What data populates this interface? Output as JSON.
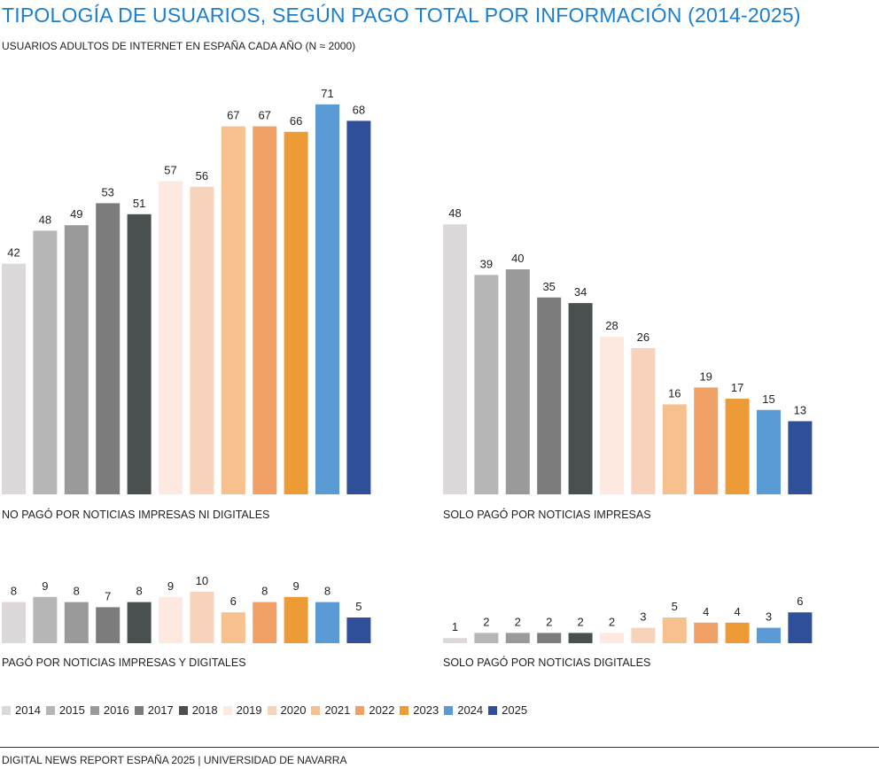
{
  "title": "TIPOLOGÍA DE USUARIOS, SEGÚN PAGO TOTAL POR INFORMACIÓN (2014-2025)",
  "subtitle": "USUARIOS ADULTOS DE INTERNET EN ESPAÑA CADA AÑO (N ≈ 2000)",
  "footer": "DIGITAL NEWS REPORT ESPAÑA 2025 | UNIVERSIDAD DE NAVARRA",
  "legend": [
    {
      "label": "2014",
      "color": "#ddd8d9"
    },
    {
      "label": "2015",
      "color": "#b6b6b6"
    },
    {
      "label": "2016",
      "color": "#9a9a9a"
    },
    {
      "label": "2017",
      "color": "#7c7c7c"
    },
    {
      "label": "2018",
      "color": "#4a4f4f"
    },
    {
      "label": "2019",
      "color": "#fde9e0"
    },
    {
      "label": "2020",
      "color": "#f8d3bb"
    },
    {
      "label": "2021",
      "color": "#f7c08f"
    },
    {
      "label": "2022",
      "color": "#f1a166"
    },
    {
      "label": "2023",
      "color": "#ec9b36"
    },
    {
      "label": "2024",
      "color": "#5b9bd5"
    },
    {
      "label": "2025",
      "color": "#2f4f98"
    }
  ],
  "chart_data": [
    {
      "type": "bar",
      "title": "NO PAGÓ POR NOTICIAS IMPRESAS NI DIGITALES",
      "categories": [
        "2014",
        "2015",
        "2016",
        "2017",
        "2018",
        "2019",
        "2020",
        "2021",
        "2022",
        "2023",
        "2024",
        "2025"
      ],
      "values": [
        42,
        48,
        49,
        53,
        51,
        57,
        56,
        67,
        67,
        66,
        71,
        68
      ]
    },
    {
      "type": "bar",
      "title": "SOLO PAGÓ POR NOTICIAS IMPRESAS",
      "categories": [
        "2014",
        "2015",
        "2016",
        "2017",
        "2018",
        "2019",
        "2020",
        "2021",
        "2022",
        "2023",
        "2024",
        "2025"
      ],
      "values": [
        48,
        39,
        40,
        35,
        34,
        28,
        26,
        16,
        19,
        17,
        15,
        13
      ]
    },
    {
      "type": "bar",
      "title": "PAGÓ POR NOTICIAS IMPRESAS Y DIGITALES",
      "categories": [
        "2014",
        "2015",
        "2016",
        "2017",
        "2018",
        "2019",
        "2020",
        "2021",
        "2022",
        "2023",
        "2024",
        "2025"
      ],
      "values": [
        8,
        9,
        8,
        7,
        8,
        9,
        10,
        6,
        8,
        9,
        8,
        5
      ]
    },
    {
      "type": "bar",
      "title": "SOLO PAGÓ POR NOTICIAS DIGITALES",
      "categories": [
        "2014",
        "2015",
        "2016",
        "2017",
        "2018",
        "2019",
        "2020",
        "2021",
        "2022",
        "2023",
        "2024",
        "2025"
      ],
      "values": [
        1,
        2,
        2,
        2,
        2,
        2,
        3,
        5,
        4,
        4,
        3,
        6
      ]
    }
  ]
}
